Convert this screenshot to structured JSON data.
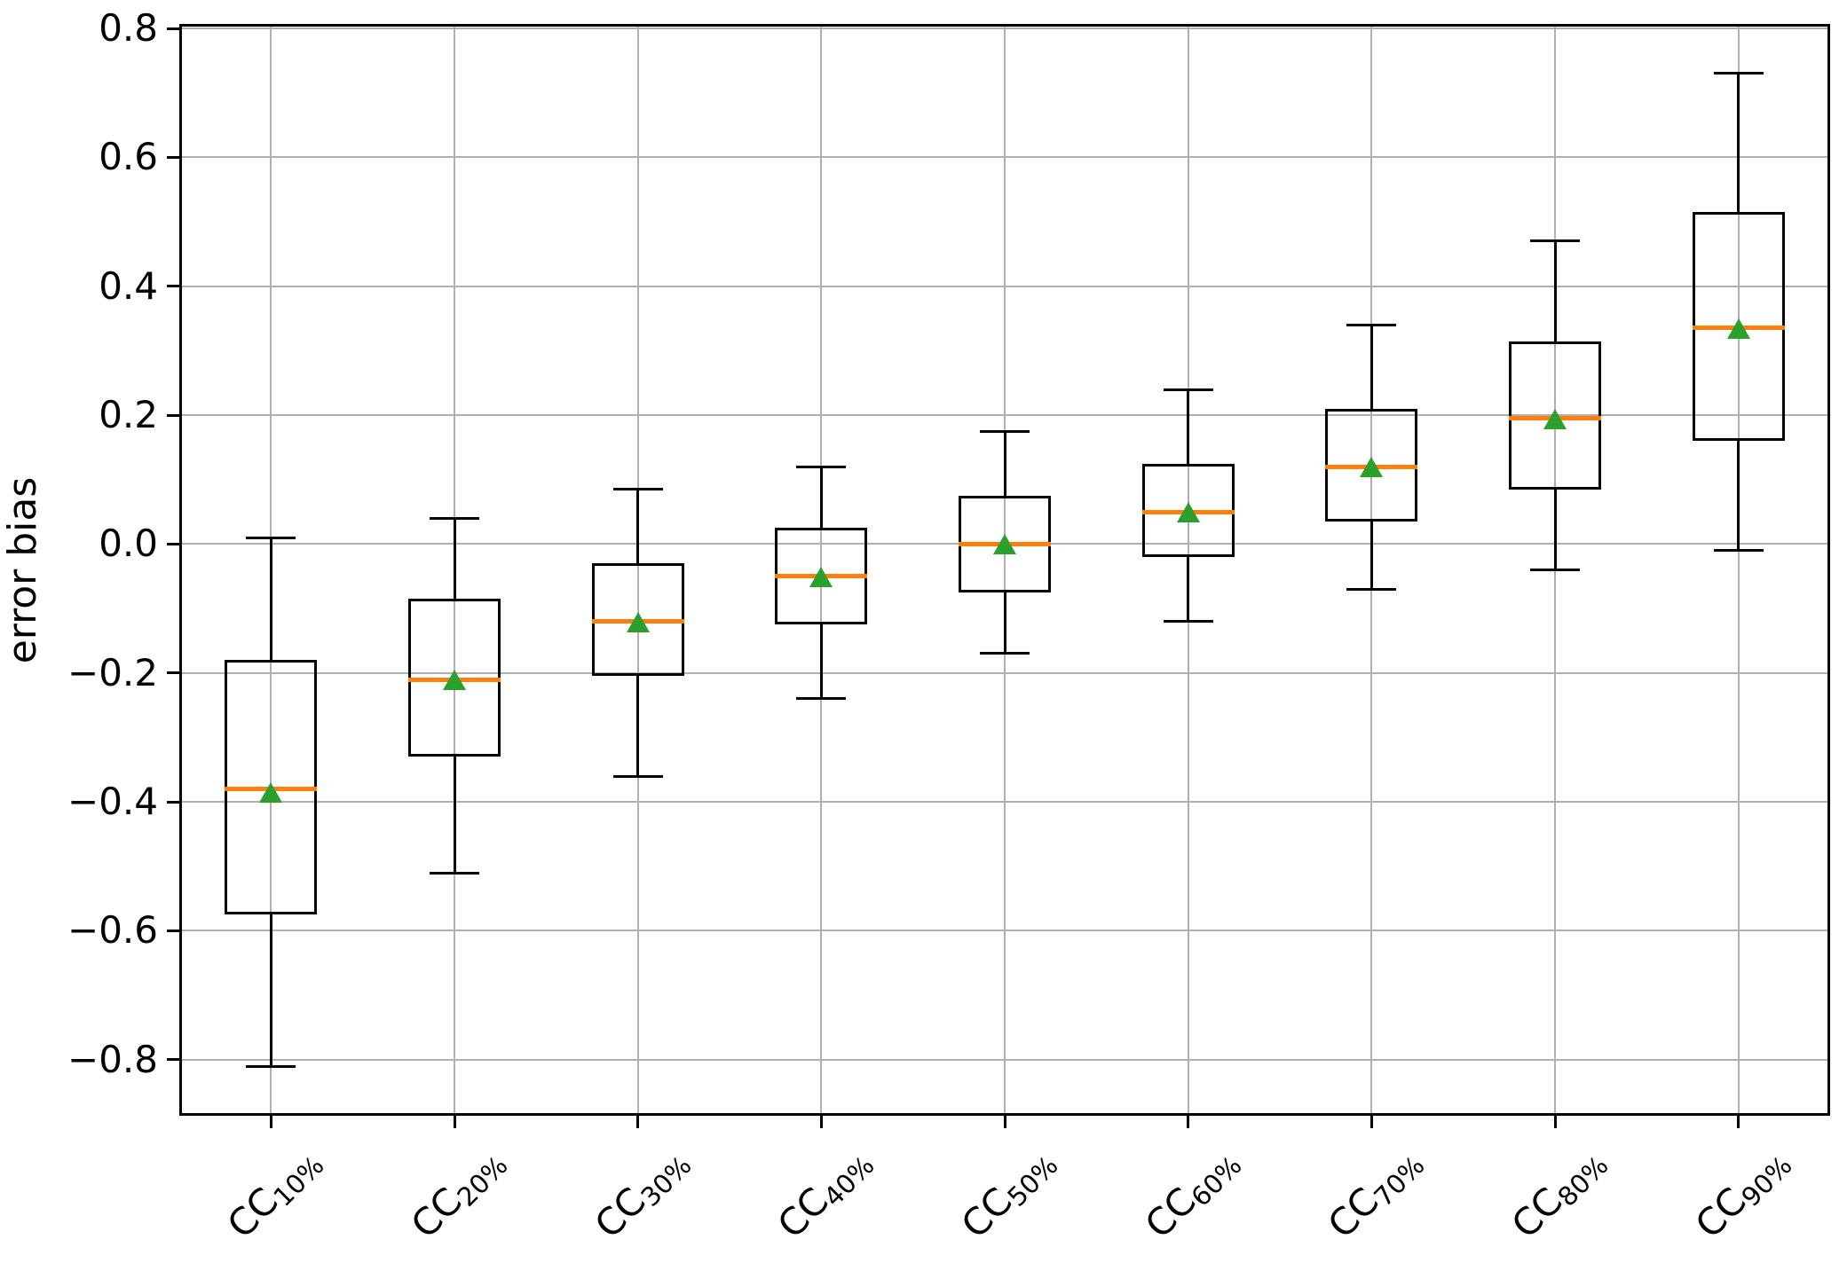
{
  "chart_data": {
    "type": "boxplot",
    "title": "",
    "xlabel": "",
    "ylabel": "error bias",
    "ylim": [
      -0.887,
      0.807
    ],
    "yticks": [
      0.8,
      0.6,
      0.4,
      0.2,
      0.0,
      -0.2,
      -0.4,
      -0.6,
      -0.8
    ],
    "ytick_labels": [
      "0.8",
      "0.6",
      "0.4",
      "0.2",
      "0.0",
      "−0.2",
      "−0.4",
      "−0.6",
      "−0.8"
    ],
    "grid": true,
    "legend": "none",
    "categories": [
      {
        "label": "CC10%",
        "prefix": "CC",
        "sub": "10%"
      },
      {
        "label": "CC20%",
        "prefix": "CC",
        "sub": "20%"
      },
      {
        "label": "CC30%",
        "prefix": "CC",
        "sub": "30%"
      },
      {
        "label": "CC40%",
        "prefix": "CC",
        "sub": "40%"
      },
      {
        "label": "CC50%",
        "prefix": "CC",
        "sub": "50%"
      },
      {
        "label": "CC60%",
        "prefix": "CC",
        "sub": "60%"
      },
      {
        "label": "CC70%",
        "prefix": "CC",
        "sub": "70%"
      },
      {
        "label": "CC80%",
        "prefix": "CC",
        "sub": "80%"
      },
      {
        "label": "CC90%",
        "prefix": "CC",
        "sub": "90%"
      }
    ],
    "series": [
      {
        "category": "CC10%",
        "whisker_low": -0.81,
        "q1": -0.575,
        "median": -0.38,
        "mean": -0.385,
        "q3": -0.18,
        "whisker_high": 0.01
      },
      {
        "category": "CC20%",
        "whisker_low": -0.51,
        "q1": -0.33,
        "median": -0.21,
        "mean": -0.21,
        "q3": -0.085,
        "whisker_high": 0.04
      },
      {
        "category": "CC30%",
        "whisker_low": -0.36,
        "q1": -0.205,
        "median": -0.12,
        "mean": -0.12,
        "q3": -0.03,
        "whisker_high": 0.085
      },
      {
        "category": "CC40%",
        "whisker_low": -0.24,
        "q1": -0.125,
        "median": -0.05,
        "mean": -0.05,
        "q3": 0.025,
        "whisker_high": 0.12
      },
      {
        "category": "CC50%",
        "whisker_low": -0.17,
        "q1": -0.075,
        "median": 0.0,
        "mean": 0.0,
        "q3": 0.075,
        "whisker_high": 0.175
      },
      {
        "category": "CC60%",
        "whisker_low": -0.12,
        "q1": -0.02,
        "median": 0.05,
        "mean": 0.05,
        "q3": 0.125,
        "whisker_high": 0.24
      },
      {
        "category": "CC70%",
        "whisker_low": -0.07,
        "q1": 0.035,
        "median": 0.12,
        "mean": 0.12,
        "q3": 0.21,
        "whisker_high": 0.34
      },
      {
        "category": "CC80%",
        "whisker_low": -0.04,
        "q1": 0.085,
        "median": 0.195,
        "mean": 0.195,
        "q3": 0.315,
        "whisker_high": 0.47
      },
      {
        "category": "CC90%",
        "whisker_low": -0.01,
        "q1": 0.16,
        "median": 0.335,
        "mean": 0.335,
        "q3": 0.515,
        "whisker_high": 0.73
      }
    ],
    "colors": {
      "box_line": "#000000",
      "median": "#ff7f0e",
      "mean_marker": "#2ca02c",
      "grid": "#b0b0b0",
      "background": "#ffffff"
    }
  }
}
